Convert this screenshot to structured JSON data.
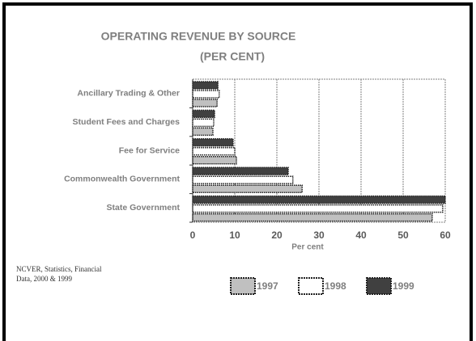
{
  "chart_data": {
    "type": "hbar",
    "title": "OPERATING REVENUE BY SOURCE",
    "subtitle": "(PER CENT)",
    "x_label": "Per cent",
    "source": [
      "NCVER, Statistics, Financial",
      "Data, 2000 & 1999"
    ],
    "categories": [
      "Ancillary Trading & Other",
      "Student Fees and Charges",
      "Fee for Service",
      "Commonwealth Government",
      "State Government"
    ],
    "series": [
      {
        "name": "1997",
        "color": "#c0c0c0",
        "values": [
          5.8,
          4.8,
          10.4,
          26,
          56.9
        ]
      },
      {
        "name": "1998",
        "color": "#ffffff",
        "values": [
          6.3,
          5.0,
          10,
          23.8,
          59.4
        ]
      },
      {
        "name": "1999",
        "color": "#404040",
        "values": [
          6.0,
          5.2,
          9.6,
          22.7,
          60
        ]
      }
    ],
    "xlim": [
      0,
      60
    ],
    "xticks": [
      0,
      10,
      20,
      30,
      40,
      50,
      60
    ],
    "grid": true,
    "legend": "bottom"
  }
}
